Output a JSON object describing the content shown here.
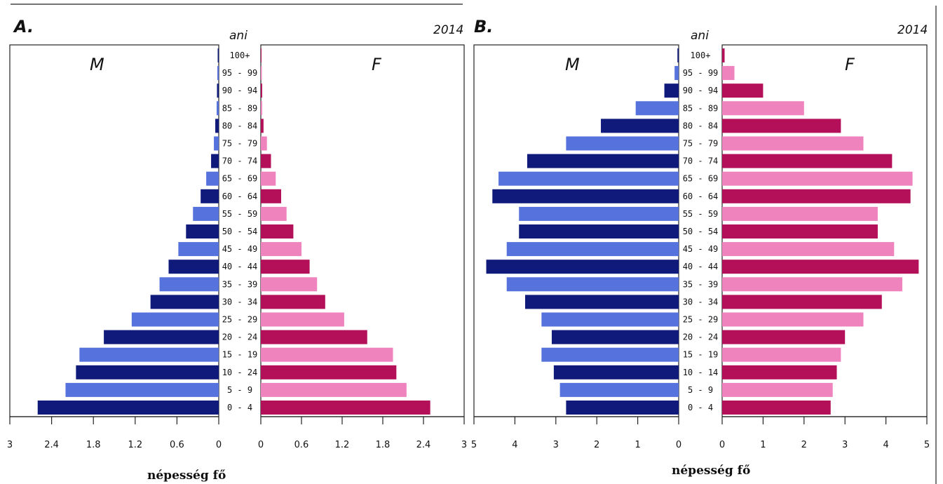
{
  "chart_data": [
    {
      "type": "bar",
      "panel_label": "A.",
      "year": "2014",
      "age_axis_label": "ani",
      "left_label": "M",
      "right_label": "F",
      "xlabel": "népesség fő",
      "categories": [
        "0 - 4",
        "5 - 9",
        "10 - 24",
        "15 - 19",
        "20 - 24",
        "25 - 29",
        "30 - 34",
        "35 - 39",
        "40 - 44",
        "45 - 49",
        "50 - 54",
        "55 - 59",
        "60 - 64",
        "65 - 69",
        "70 - 74",
        "75 - 79",
        "80 - 84",
        "85 - 89",
        "90 - 94",
        "95 - 99",
        "100+"
      ],
      "xlim": [
        0,
        3
      ],
      "left_ticks": [
        "3",
        "2.4",
        "1.8",
        "1.2",
        "0.6",
        "0"
      ],
      "right_ticks": [
        "0",
        "0.6",
        "1.2",
        "1.8",
        "2.4",
        "3"
      ],
      "series": [
        {
          "side": "left",
          "values": [
            2.6,
            2.2,
            2.05,
            2.0,
            1.65,
            1.25,
            0.98,
            0.85,
            0.72,
            0.58,
            0.47,
            0.37,
            0.26,
            0.18,
            0.11,
            0.07,
            0.05,
            0.03,
            0.025,
            0.02,
            0.015
          ]
        },
        {
          "side": "right",
          "values": [
            2.5,
            2.15,
            2.0,
            1.95,
            1.57,
            1.23,
            0.95,
            0.83,
            0.72,
            0.6,
            0.48,
            0.38,
            0.3,
            0.22,
            0.15,
            0.09,
            0.04,
            0.02,
            0.02,
            0.015,
            0.01
          ]
        }
      ],
      "colors": {
        "male_dark": "#0f1a7a",
        "male_light": "#5672dc",
        "female_dark": "#b4105a",
        "female_light": "#ef83bd"
      }
    },
    {
      "type": "bar",
      "panel_label": "B.",
      "year": "2014",
      "age_axis_label": "ani",
      "left_label": "M",
      "right_label": "F",
      "xlabel": "népesség fő",
      "categories": [
        "0 - 4",
        "5 - 9",
        "10 - 14",
        "15 - 19",
        "20 - 24",
        "25 - 29",
        "30 - 34",
        "35 - 39",
        "40 - 44",
        "45 - 49",
        "50 - 54",
        "55 - 59",
        "60 - 64",
        "65 - 69",
        "70 - 74",
        "75 - 79",
        "80 - 84",
        "85 - 89",
        "90 - 94",
        "95 - 99",
        "100+"
      ],
      "xlim": [
        0,
        5
      ],
      "left_ticks": [
        "5",
        "4",
        "3",
        "2",
        "1",
        "0"
      ],
      "right_ticks": [
        "0",
        "1",
        "2",
        "3",
        "4",
        "5"
      ],
      "series": [
        {
          "side": "left",
          "values": [
            2.75,
            2.9,
            3.05,
            3.35,
            3.1,
            3.35,
            3.75,
            4.2,
            4.7,
            4.2,
            3.9,
            3.9,
            4.55,
            4.4,
            3.7,
            2.75,
            1.9,
            1.05,
            0.35,
            0.1,
            0.03
          ]
        },
        {
          "side": "right",
          "values": [
            2.65,
            2.7,
            2.8,
            2.9,
            3.0,
            3.45,
            3.9,
            4.4,
            4.8,
            4.2,
            3.8,
            3.8,
            4.6,
            4.65,
            4.15,
            3.45,
            2.9,
            2.0,
            1.0,
            0.3,
            0.06
          ]
        }
      ],
      "colors": {
        "male_dark": "#0f1a7a",
        "male_light": "#5672dc",
        "female_dark": "#b4105a",
        "female_light": "#ef83bd"
      }
    }
  ]
}
